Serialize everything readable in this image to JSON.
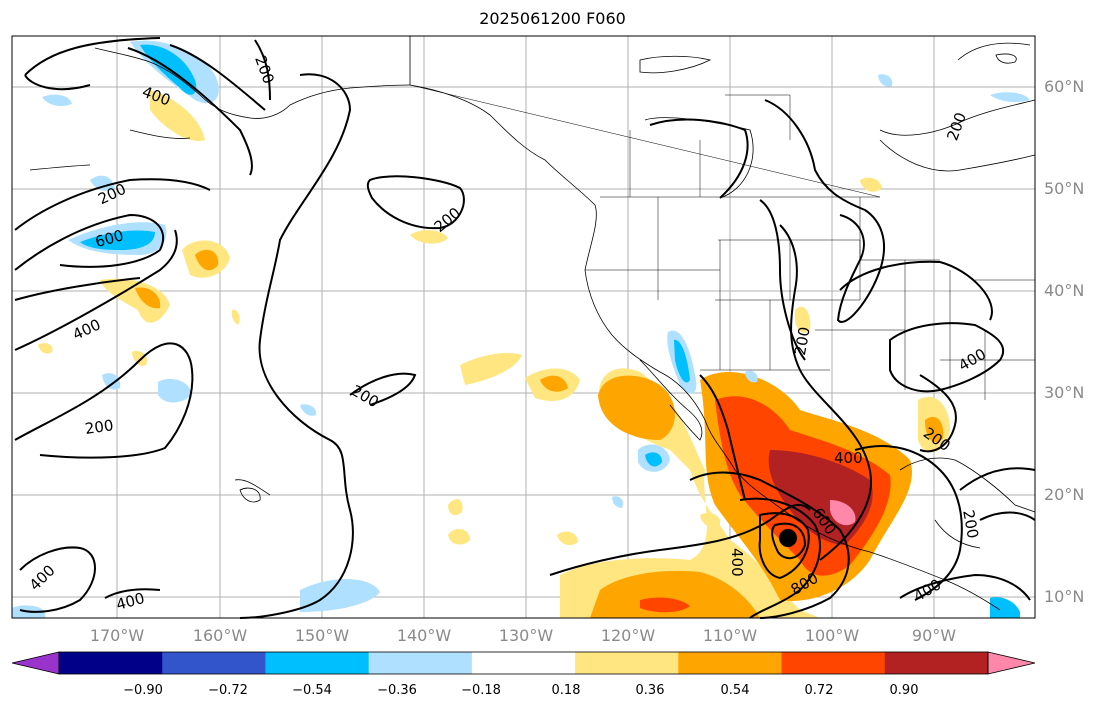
{
  "title": "2025061200 F060",
  "lat_labels": [
    "60°N",
    "50°N",
    "40°N",
    "30°N",
    "20°N",
    "10°N"
  ],
  "lon_labels": [
    "170°W",
    "160°W",
    "150°W",
    "140°W",
    "130°W",
    "120°W",
    "110°W",
    "100°W",
    "90°W"
  ],
  "contour_labels": [
    "400",
    "200",
    "200",
    "600",
    "400",
    "200",
    "200",
    "200",
    "400",
    "200",
    "200",
    "400",
    "200",
    "400",
    "600",
    "400",
    "800",
    "400",
    "200",
    "400",
    "200"
  ],
  "colorbar": {
    "ticks": [
      "−0.90",
      "−0.72",
      "−0.54",
      "−0.36",
      "−0.18",
      "0.18",
      "0.36",
      "0.54",
      "0.72",
      "0.90"
    ],
    "colors": [
      "#9933cc",
      "#000088",
      "#3355cc",
      "#00bfff",
      "#b0e0ff",
      "#ffffff",
      "#ffe680",
      "#ffa500",
      "#ff4500",
      "#b22222",
      "#ff88aa"
    ]
  },
  "storm_center_marker": "black-dot"
}
